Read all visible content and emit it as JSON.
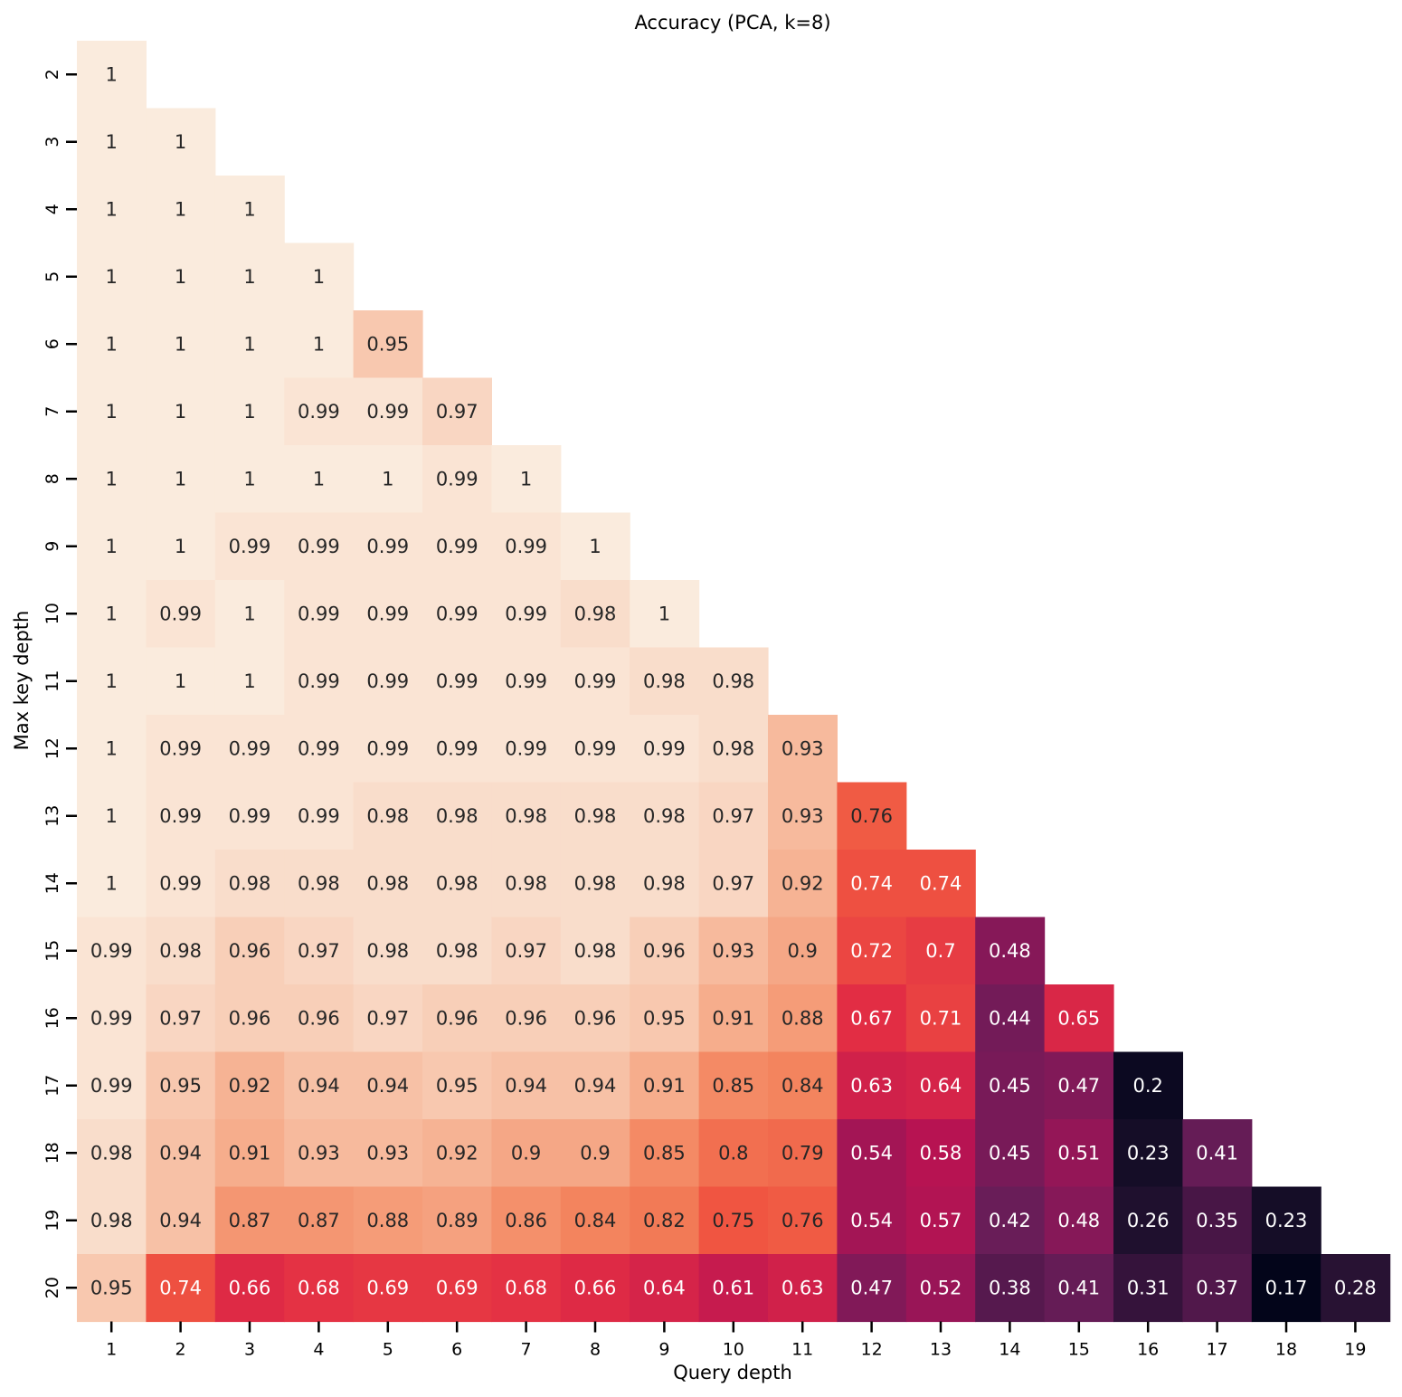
{
  "chart_data": {
    "type": "heatmap",
    "title": "Accuracy (PCA, k=8)",
    "xlabel": "Query depth",
    "ylabel": "Max key depth",
    "x_categories": [
      "1",
      "2",
      "3",
      "4",
      "5",
      "6",
      "7",
      "8",
      "9",
      "10",
      "11",
      "12",
      "13",
      "14",
      "15",
      "16",
      "17",
      "18",
      "19"
    ],
    "y_categories": [
      "2",
      "3",
      "4",
      "5",
      "6",
      "7",
      "8",
      "9",
      "10",
      "11",
      "12",
      "13",
      "14",
      "15",
      "16",
      "17",
      "18",
      "19",
      "20"
    ],
    "colormap": "rocket",
    "value_range": [
      0.17,
      1
    ],
    "grid": false,
    "colorbar": false,
    "values": [
      [
        "1"
      ],
      [
        "1",
        "1"
      ],
      [
        "1",
        "1",
        "1"
      ],
      [
        "1",
        "1",
        "1",
        "1"
      ],
      [
        "1",
        "1",
        "1",
        "1",
        "0.95"
      ],
      [
        "1",
        "1",
        "1",
        "0.99",
        "0.99",
        "0.97"
      ],
      [
        "1",
        "1",
        "1",
        "1",
        "1",
        "0.99",
        "1"
      ],
      [
        "1",
        "1",
        "0.99",
        "0.99",
        "0.99",
        "0.99",
        "0.99",
        "1"
      ],
      [
        "1",
        "0.99",
        "1",
        "0.99",
        "0.99",
        "0.99",
        "0.99",
        "0.98",
        "1"
      ],
      [
        "1",
        "1",
        "1",
        "0.99",
        "0.99",
        "0.99",
        "0.99",
        "0.99",
        "0.98",
        "0.98"
      ],
      [
        "1",
        "0.99",
        "0.99",
        "0.99",
        "0.99",
        "0.99",
        "0.99",
        "0.99",
        "0.99",
        "0.98",
        "0.93"
      ],
      [
        "1",
        "0.99",
        "0.99",
        "0.99",
        "0.98",
        "0.98",
        "0.98",
        "0.98",
        "0.98",
        "0.97",
        "0.93",
        "0.76"
      ],
      [
        "1",
        "0.99",
        "0.98",
        "0.98",
        "0.98",
        "0.98",
        "0.98",
        "0.98",
        "0.98",
        "0.97",
        "0.92",
        "0.74",
        "0.74"
      ],
      [
        "0.99",
        "0.98",
        "0.96",
        "0.97",
        "0.98",
        "0.98",
        "0.97",
        "0.98",
        "0.96",
        "0.93",
        "0.9",
        "0.72",
        "0.7",
        "0.48"
      ],
      [
        "0.99",
        "0.97",
        "0.96",
        "0.96",
        "0.97",
        "0.96",
        "0.96",
        "0.96",
        "0.95",
        "0.91",
        "0.88",
        "0.67",
        "0.71",
        "0.44",
        "0.65"
      ],
      [
        "0.99",
        "0.95",
        "0.92",
        "0.94",
        "0.94",
        "0.95",
        "0.94",
        "0.94",
        "0.91",
        "0.85",
        "0.84",
        "0.63",
        "0.64",
        "0.45",
        "0.47",
        "0.2"
      ],
      [
        "0.98",
        "0.94",
        "0.91",
        "0.93",
        "0.93",
        "0.92",
        "0.9",
        "0.9",
        "0.85",
        "0.8",
        "0.79",
        "0.54",
        "0.58",
        "0.45",
        "0.51",
        "0.23",
        "0.41"
      ],
      [
        "0.98",
        "0.94",
        "0.87",
        "0.87",
        "0.88",
        "0.89",
        "0.86",
        "0.84",
        "0.82",
        "0.75",
        "0.76",
        "0.54",
        "0.57",
        "0.42",
        "0.48",
        "0.26",
        "0.35",
        "0.23"
      ],
      [
        "0.95",
        "0.74",
        "0.66",
        "0.68",
        "0.69",
        "0.69",
        "0.68",
        "0.66",
        "0.64",
        "0.61",
        "0.63",
        "0.47",
        "0.52",
        "0.38",
        "0.41",
        "0.31",
        "0.37",
        "0.17",
        "0.28"
      ]
    ]
  }
}
